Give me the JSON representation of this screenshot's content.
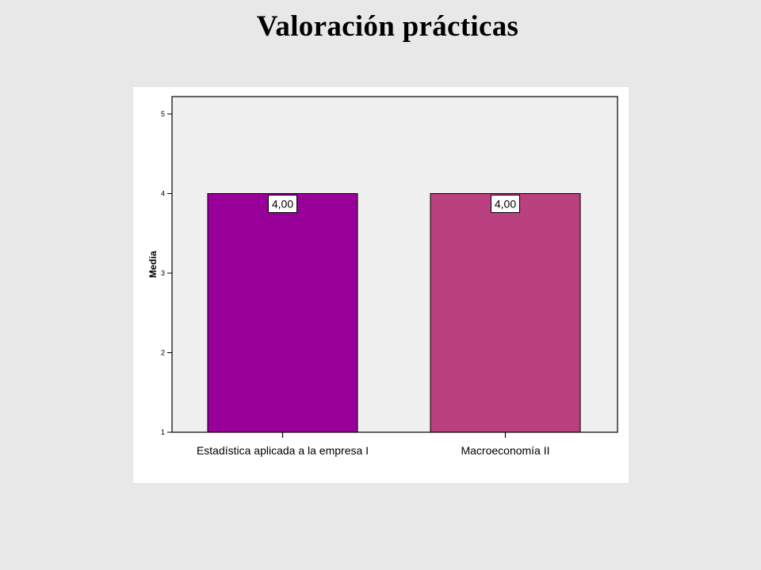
{
  "slide": {
    "title": "Valoración prácticas"
  },
  "chart_data": {
    "type": "bar",
    "title": "",
    "xlabel": "",
    "ylabel": "Media",
    "categories": [
      "Estadística aplicada a la empresa I",
      "Macroeconomía II"
    ],
    "values": [
      4.0,
      4.0
    ],
    "data_labels": [
      "4,00",
      "4,00"
    ],
    "ylim": [
      1,
      5
    ],
    "yticks": [
      "1",
      "2",
      "3",
      "4",
      "5"
    ],
    "grid": false,
    "legend": "none",
    "colors": {
      "bars": [
        "#990099",
        "#bb4080"
      ],
      "plot_background": "#f0f0f0",
      "panel_background": "#ffffff",
      "page_background": "#e8e8e8"
    }
  }
}
